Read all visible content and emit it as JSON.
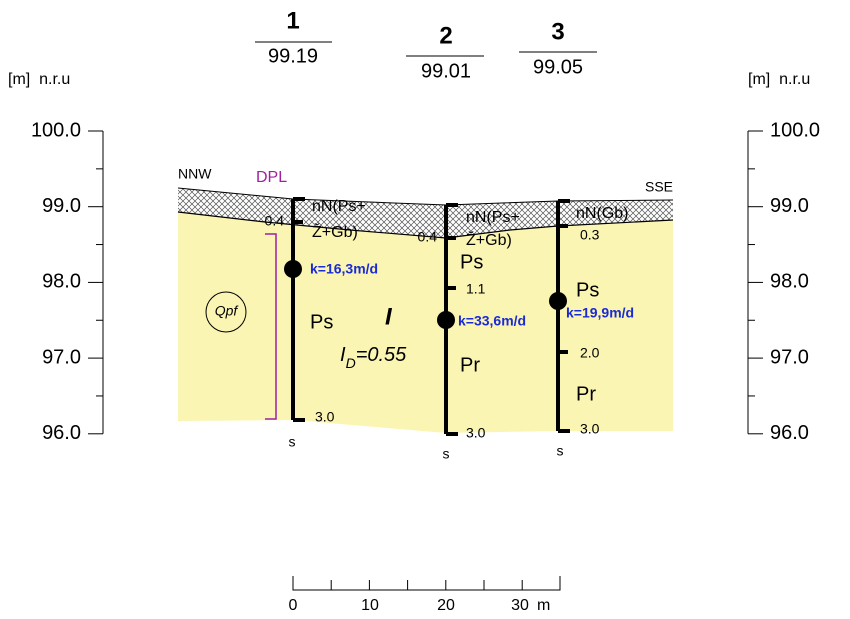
{
  "axis_left": {
    "unit": "[m]  n.r.u",
    "ticks": [
      "100.0",
      "99.0",
      "98.0",
      "97.0",
      "96.0"
    ]
  },
  "axis_right": {
    "unit": "[m]  n.r.u",
    "ticks": [
      "100.0",
      "99.0",
      "98.0",
      "97.0",
      "96.0"
    ]
  },
  "directions": {
    "left": "NNW",
    "right": "SSE"
  },
  "dpl": "DPL",
  "stratigraphy": "Qpf",
  "layer": {
    "number": "I",
    "id_symbol": "I",
    "id_subscript": "D",
    "id_value": "=0.55"
  },
  "boreholes": [
    {
      "number": "1",
      "elevation": "99.19",
      "labels": [
        "nN(Ps+",
        "Ž+Gb)",
        "0.4",
        "k=16,3m/d",
        "Ps",
        "3.0",
        "s"
      ]
    },
    {
      "number": "2",
      "elevation": "99.01",
      "labels": [
        "nN(Ps+",
        "Ž+Gb)",
        "0.4",
        "Ps",
        "1.1",
        "k=33,6m/d",
        "Pr",
        "3.0",
        "s"
      ]
    },
    {
      "number": "3",
      "elevation": "99.05",
      "labels": [
        "nN(Gb)",
        "0.3",
        "Ps",
        "k=19,9m/d",
        "2.0",
        "Pr",
        "3.0",
        "s"
      ]
    }
  ],
  "scale_bar": {
    "labels": [
      "0",
      "10",
      "20",
      "30"
    ],
    "unit": "m"
  }
}
